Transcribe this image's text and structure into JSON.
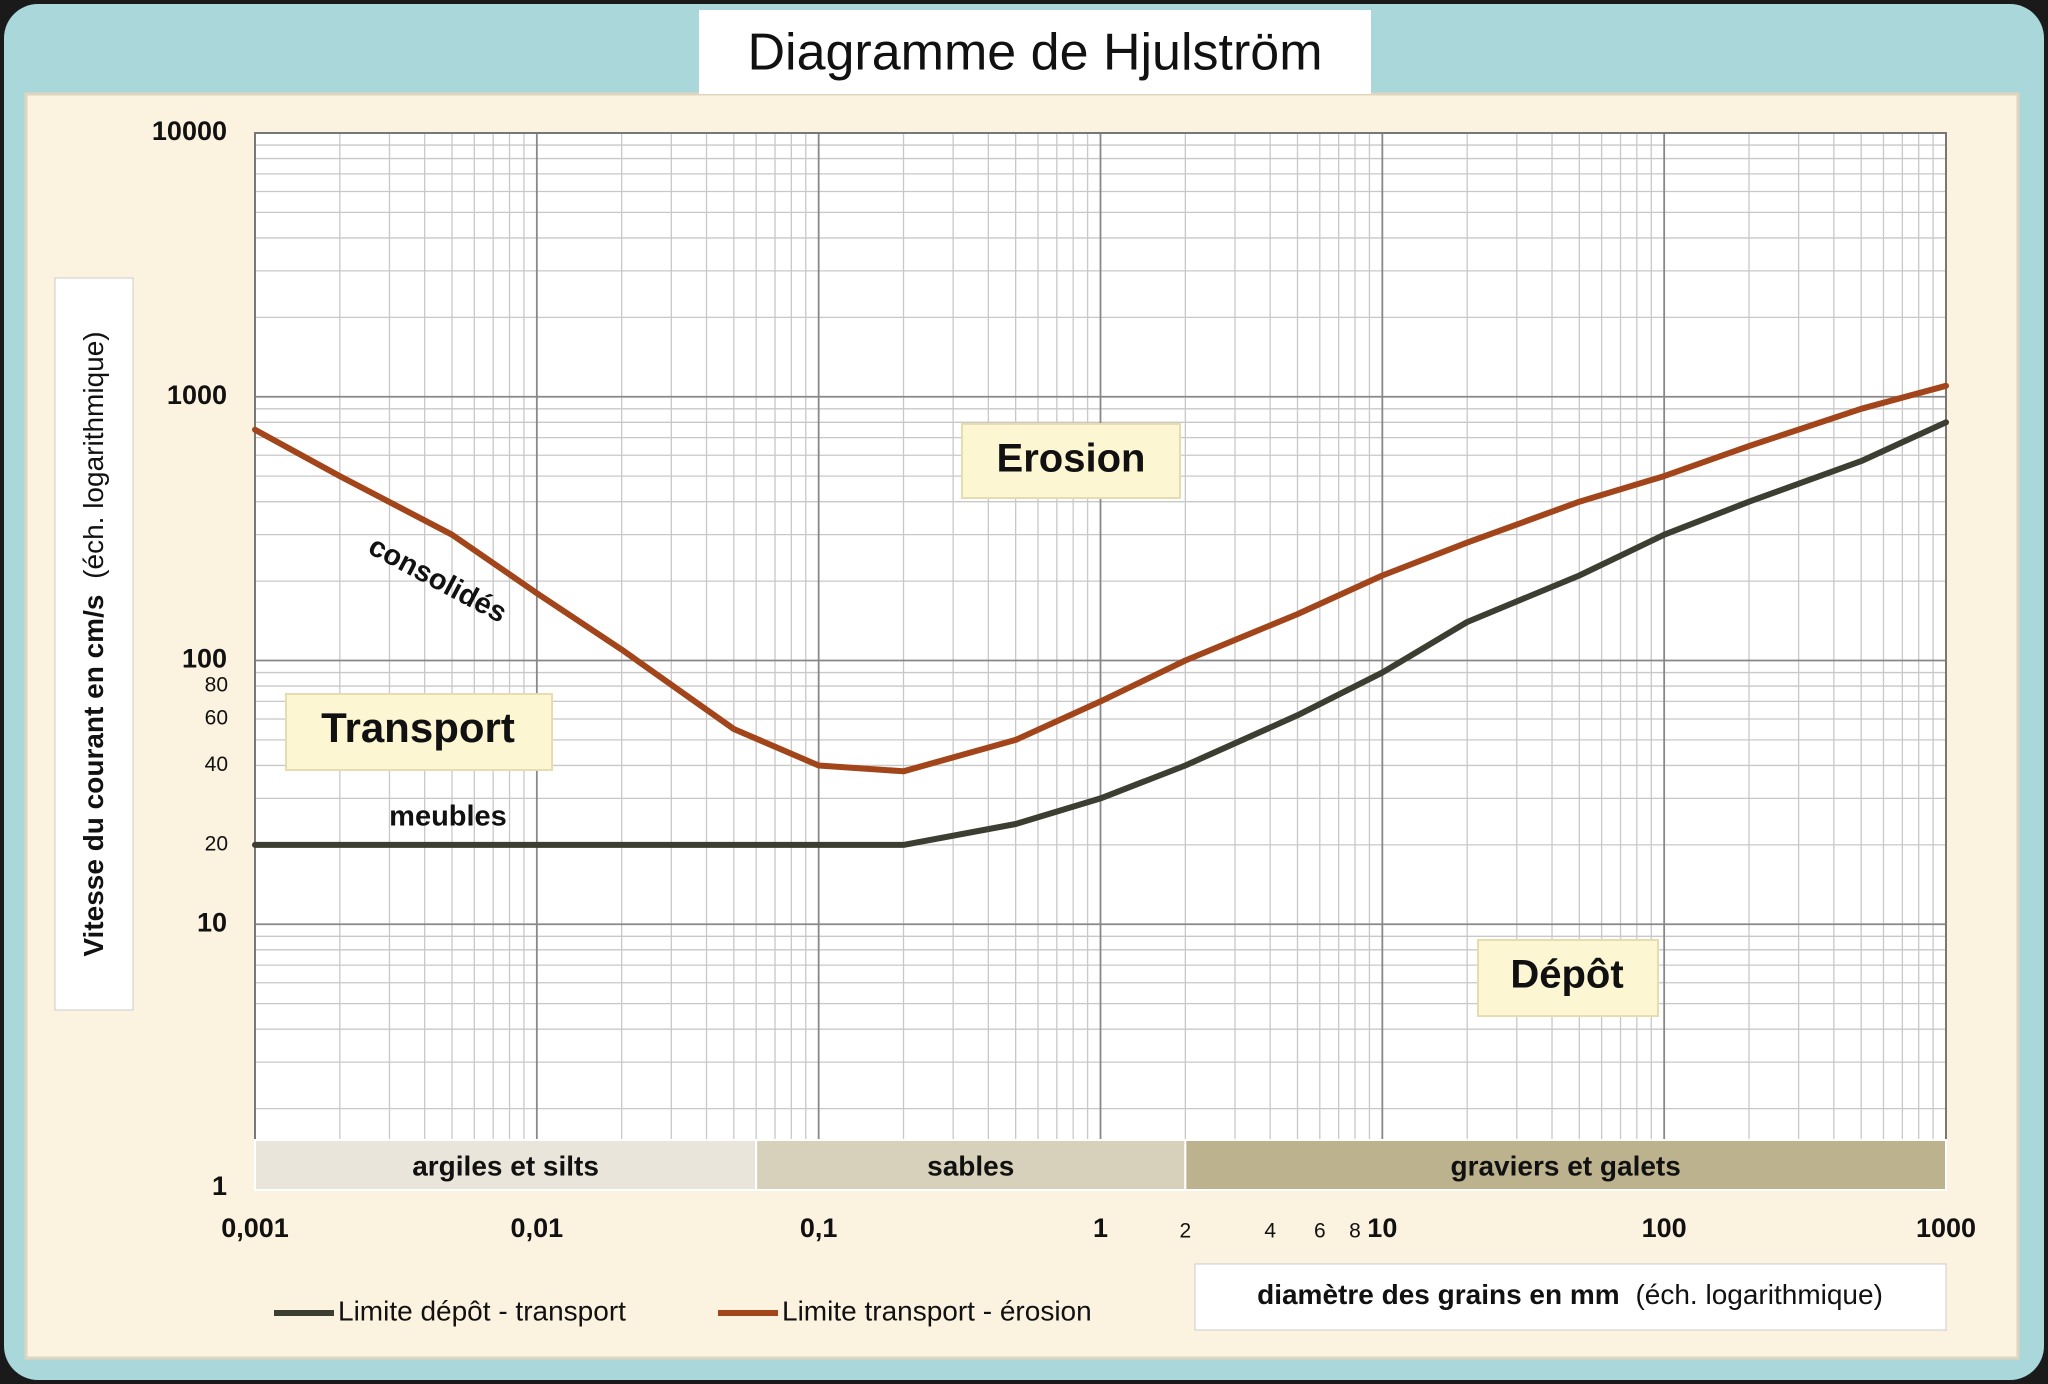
{
  "chart_data": {
    "type": "line",
    "title": "Diagramme de Hjulström",
    "log_x": true,
    "log_y": true,
    "grid": true,
    "ylabel": "Vitesse du courant en cm/s",
    "ylabel_note": "(éch. logarithmique)",
    "xlabel": "diamètre des grains en mm",
    "xlabel_note": "(éch. logarithmique)",
    "xlim": [
      0.001,
      1000
    ],
    "ylim": [
      1,
      10000
    ],
    "xticks": [
      {
        "value": 0.001,
        "label": "0,001"
      },
      {
        "value": 0.01,
        "label": "0,01"
      },
      {
        "value": 0.1,
        "label": "0,1"
      },
      1,
      10,
      100,
      1000
    ],
    "xticks_minor_labeled": [
      2,
      4,
      6,
      8
    ],
    "yticks": [
      1,
      10,
      100,
      1000,
      10000
    ],
    "yticks_minor_labeled": [
      20,
      40,
      60,
      80
    ],
    "series": [
      {
        "name": "Limite dépôt - transport",
        "color": "#3b3e31",
        "x": [
          0.001,
          0.01,
          0.1,
          0.2,
          0.5,
          1,
          2,
          5,
          10,
          20,
          50,
          100,
          200,
          500,
          1000
        ],
        "values": [
          20,
          20,
          20,
          20,
          24,
          30,
          40,
          62,
          90,
          140,
          210,
          300,
          400,
          570,
          800
        ]
      },
      {
        "name": "Limite transport - érosion",
        "color": "#a3451a",
        "x": [
          0.001,
          0.002,
          0.005,
          0.01,
          0.02,
          0.05,
          0.1,
          0.2,
          0.5,
          1,
          2,
          5,
          10,
          20,
          50,
          100,
          200,
          500,
          1000
        ],
        "values": [
          750,
          500,
          300,
          180,
          110,
          55,
          40,
          38,
          50,
          70,
          100,
          150,
          210,
          280,
          400,
          500,
          650,
          900,
          1100
        ]
      }
    ],
    "bands": [
      {
        "label": "argiles et silts",
        "from": 0.001,
        "to": 0.06,
        "color": "#e9e5da"
      },
      {
        "label": "sables",
        "from": 0.06,
        "to": 2,
        "color": "#d7d0ba"
      },
      {
        "label": "graviers et galets",
        "from": 2,
        "to": 1000,
        "color": "#bdb28e"
      }
    ],
    "annotations": [
      "Erosion",
      "Transport",
      "Dépôt",
      "consolidés",
      "meubles"
    ]
  }
}
